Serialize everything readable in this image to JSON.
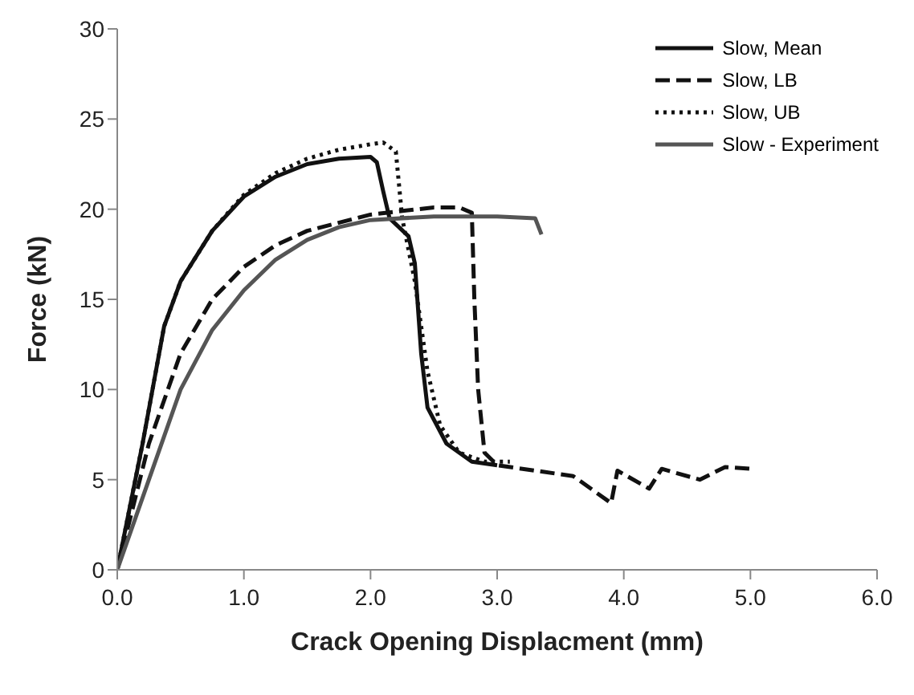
{
  "chart_data": {
    "type": "line",
    "xlabel": "Crack Opening Displacment (mm)",
    "ylabel": "Force (kN)",
    "xlim": [
      0,
      6
    ],
    "ylim": [
      0,
      30
    ],
    "xticks": [
      {
        "value": 0,
        "label": "0.0"
      },
      {
        "value": 1,
        "label": "1.0"
      },
      {
        "value": 2,
        "label": "2.0"
      },
      {
        "value": 3,
        "label": "3.0"
      },
      {
        "value": 4,
        "label": "4.0"
      },
      {
        "value": 5,
        "label": "5.0"
      },
      {
        "value": 6,
        "label": "6.0"
      }
    ],
    "yticks": [
      0,
      5,
      10,
      15,
      20,
      25,
      30
    ],
    "grid": false,
    "legend": "top right",
    "marker": "none",
    "series": [
      {
        "name": "Slow, Mean",
        "color": "#111111",
        "line_style": "solid",
        "x": [
          0,
          0.2,
          0.37,
          0.5,
          0.75,
          1.0,
          1.25,
          1.5,
          1.75,
          2.0,
          2.05,
          2.1,
          2.15,
          2.3,
          2.35,
          2.4,
          2.45,
          2.6,
          2.8,
          3.0
        ],
        "values": [
          0,
          7,
          13.5,
          16,
          18.8,
          20.7,
          21.8,
          22.5,
          22.8,
          22.9,
          22.6,
          21,
          19.5,
          18.5,
          17,
          12,
          9,
          7,
          6,
          5.8
        ]
      },
      {
        "name": "Slow, LB",
        "color": "#111111",
        "line_style": "dashed",
        "x": [
          0,
          0.25,
          0.5,
          0.75,
          1.0,
          1.25,
          1.5,
          2.0,
          2.5,
          2.7,
          2.8,
          2.82,
          2.85,
          2.9,
          3.0,
          3.2,
          3.6,
          3.9,
          3.95,
          4.2,
          4.3,
          4.6,
          4.8,
          5.0
        ],
        "values": [
          0,
          7,
          12,
          15,
          16.8,
          18,
          18.8,
          19.7,
          20.1,
          20.1,
          19.8,
          15,
          10,
          6.5,
          5.8,
          5.6,
          5.2,
          3.7,
          5.5,
          4.5,
          5.6,
          5,
          5.7,
          5.6
        ]
      },
      {
        "name": "Slow, UB",
        "color": "#111111",
        "line_style": "dotted",
        "x": [
          0,
          0.2,
          0.37,
          0.5,
          0.75,
          1.0,
          1.25,
          1.5,
          1.75,
          2.0,
          2.1,
          2.2,
          2.25,
          2.35,
          2.45,
          2.55,
          2.7,
          2.9,
          3.1
        ],
        "values": [
          0,
          7,
          13.5,
          16,
          18.8,
          20.8,
          22,
          22.8,
          23.3,
          23.6,
          23.7,
          23.2,
          19.5,
          16,
          11,
          8,
          6.5,
          6,
          6
        ]
      },
      {
        "name": "Slow - Experiment",
        "color": "#555555",
        "line_style": "solid",
        "x": [
          0,
          0.25,
          0.5,
          0.75,
          1.0,
          1.25,
          1.5,
          1.75,
          2.0,
          2.5,
          3.0,
          3.3,
          3.35
        ],
        "values": [
          0,
          5,
          10,
          13.3,
          15.5,
          17.2,
          18.3,
          19,
          19.4,
          19.6,
          19.6,
          19.5,
          18.6
        ]
      }
    ]
  }
}
